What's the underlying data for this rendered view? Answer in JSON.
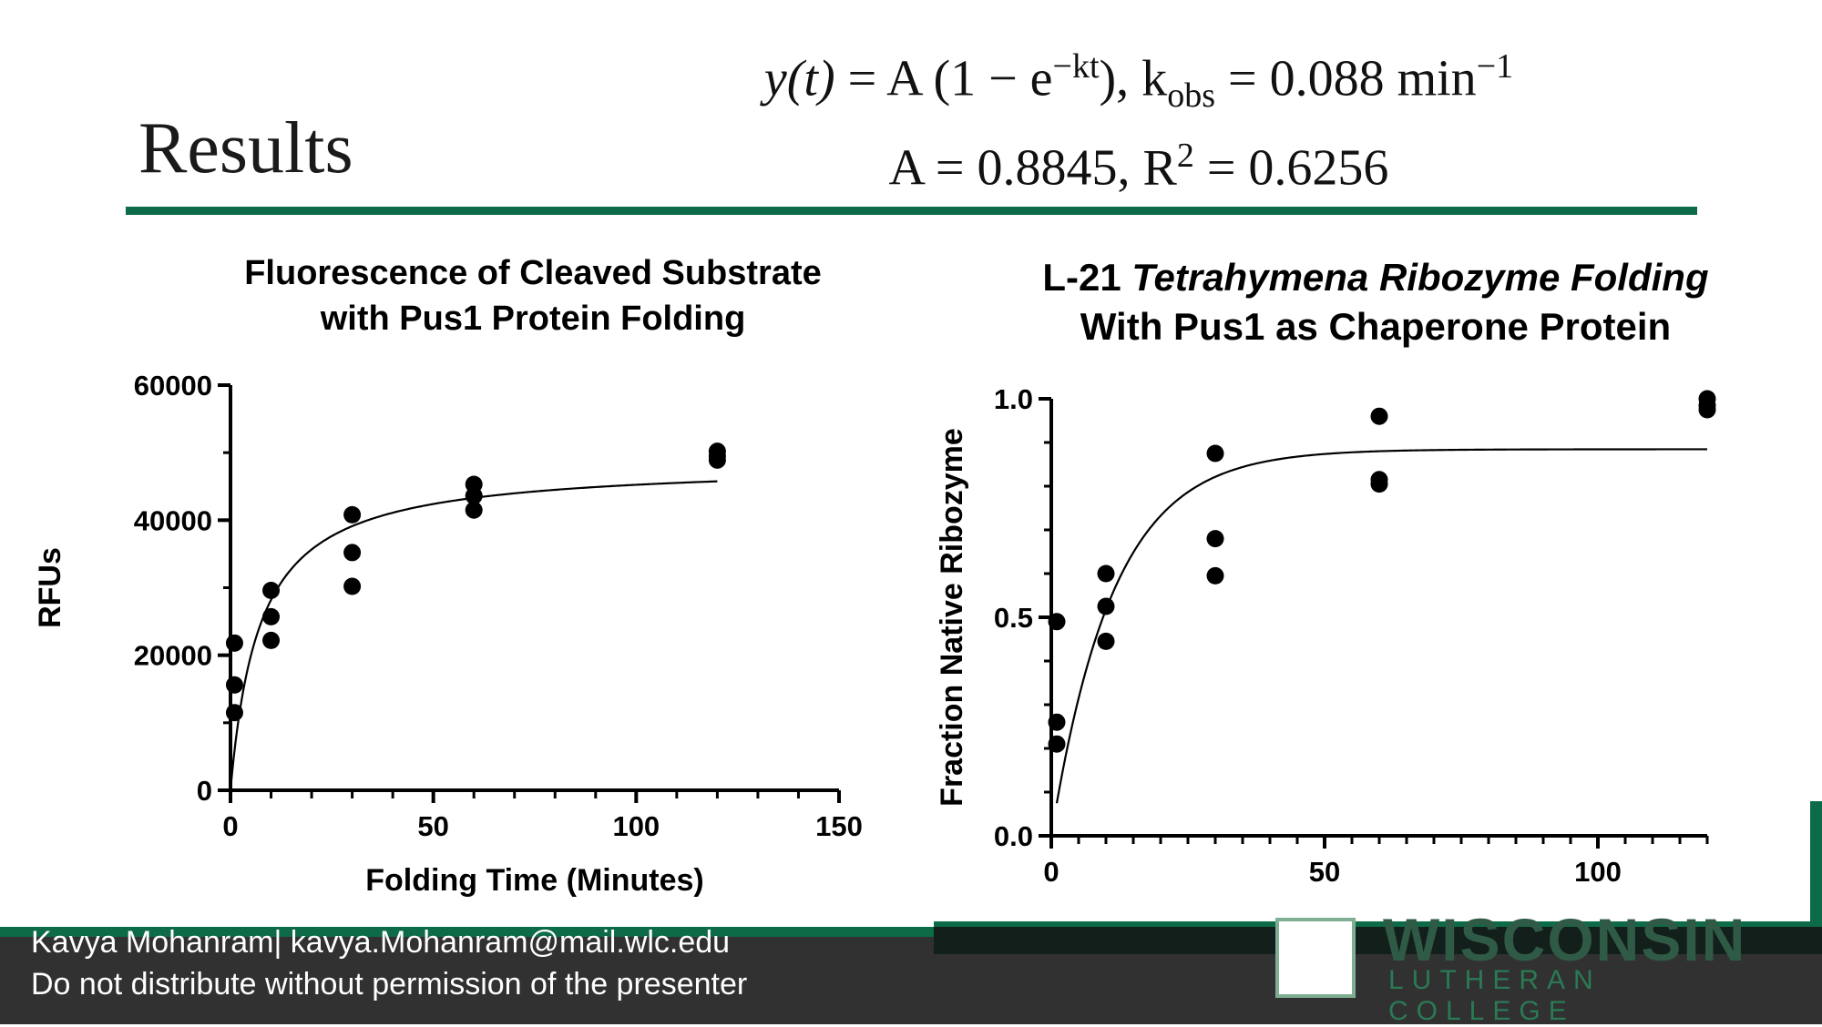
{
  "slide": {
    "title": "Results",
    "equation_line1_left": "y(t)",
    "equation_line1_right": "  =  A (1 − e",
    "equation_exp": "−kt",
    "equation_line1_tail": "), k",
    "equation_sub": "obs",
    "equation_line1_end": " = 0.088 min",
    "equation_min_exp": "−1",
    "equation_line2_a": "A  =  0.8845, R",
    "equation_r2_exp": "2",
    "equation_line2_b": " = 0.6256"
  },
  "footer": {
    "author_line": "Kavya Mohanram| kavya.Mohanram@mail.wlc.edu",
    "notice_line": "Do not distribute without permission of the presenter",
    "logo_name": "WISCONSIN",
    "logo_sub": "LUTHERAN COLLEGE"
  },
  "colors": {
    "accent": "#0d6b48",
    "footer_bg": "#141414"
  },
  "chart_data": [
    {
      "type": "scatter",
      "title_line1": "Fluorescence of Cleaved Substrate",
      "title_line2": "with Pus1 Protein Folding",
      "xlabel": "Folding Time (Minutes)",
      "ylabel": "RFUs",
      "xlim": [
        0,
        150
      ],
      "ylim": [
        0,
        60000
      ],
      "x_ticks": [
        "0",
        "50",
        "100",
        "150"
      ],
      "y_ticks": [
        "0",
        "20000",
        "40000",
        "60000"
      ],
      "points": [
        [
          1,
          21800
        ],
        [
          1,
          15600
        ],
        [
          1,
          11500
        ],
        [
          10,
          29600
        ],
        [
          10,
          25700
        ],
        [
          10,
          22200
        ],
        [
          30,
          40800
        ],
        [
          30,
          35200
        ],
        [
          30,
          30200
        ],
        [
          60,
          45300
        ],
        [
          60,
          43600
        ],
        [
          60,
          41500
        ],
        [
          120,
          50200
        ],
        [
          120,
          49500
        ],
        [
          120,
          48900
        ]
      ],
      "fit": {
        "model": "hyperbolic",
        "max": 48500,
        "half": 7.2,
        "x_range": [
          0,
          120
        ]
      }
    },
    {
      "type": "scatter",
      "title_line1_plain": "L-21 ",
      "title_line1_italic": "Tetrahymena Ribozyme Folding",
      "title_line2": "With Pus1 as Chaperone Protein",
      "xlabel": "",
      "ylabel": "Fraction Native Ribozyme",
      "xlim": [
        0,
        120
      ],
      "ylim": [
        0,
        1.0
      ],
      "x_ticks": [
        "0",
        "50",
        "100"
      ],
      "y_ticks": [
        "0.0",
        "0.5",
        "1.0"
      ],
      "points": [
        [
          1,
          0.49
        ],
        [
          1,
          0.26
        ],
        [
          1,
          0.21
        ],
        [
          10,
          0.6
        ],
        [
          10,
          0.525
        ],
        [
          10,
          0.445
        ],
        [
          30,
          0.875
        ],
        [
          30,
          0.68
        ],
        [
          30,
          0.595
        ],
        [
          60,
          0.96
        ],
        [
          60,
          0.815
        ],
        [
          60,
          0.805
        ],
        [
          120,
          1.0
        ],
        [
          120,
          0.985
        ],
        [
          120,
          0.975
        ]
      ],
      "fit": {
        "model": "exponential",
        "A": 0.8845,
        "k": 0.088,
        "x_range": [
          1,
          120
        ]
      }
    }
  ]
}
